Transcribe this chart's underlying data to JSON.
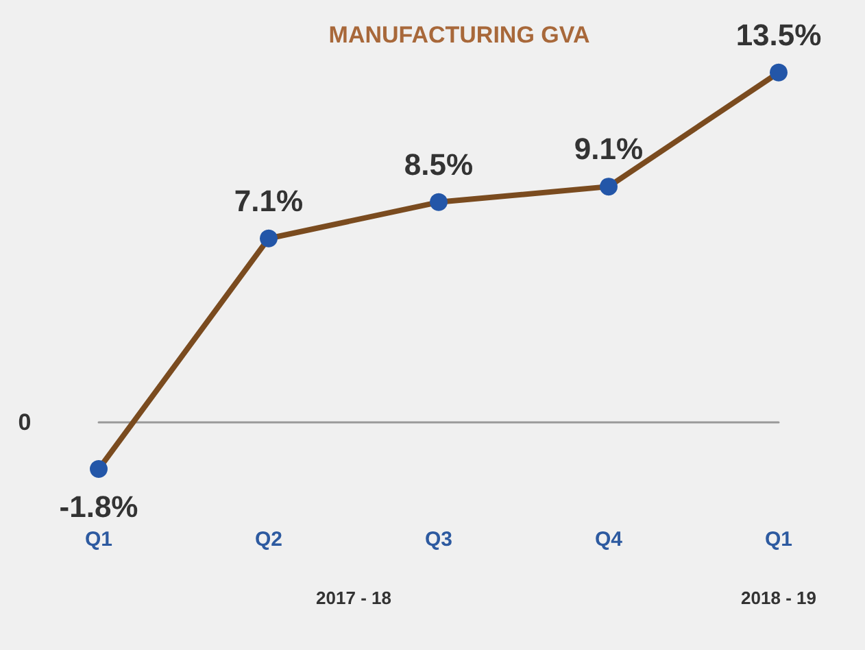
{
  "chart_data": {
    "type": "line",
    "title": "MANUFACTURING GVA",
    "categories": [
      "Q1",
      "Q2",
      "Q3",
      "Q4",
      "Q1"
    ],
    "series": [
      {
        "color": "#7a4b1f",
        "colors": [
          "#2356a8",
          "#2356a8",
          "#2356a8",
          "#2356a8",
          "#2356a8"
        ],
        "values": [
          -1.8,
          7.1,
          8.5,
          9.1,
          13.5
        ],
        "value_labels": [
          "-1.8%",
          "7.1%",
          "8.5%",
          "9.1%",
          "13.5%"
        ]
      }
    ],
    "grid": false,
    "marker": "circle",
    "line_style": "solid",
    "annotations": [
      "0",
      "2017 - 18",
      "2018 - 19"
    ]
  }
}
